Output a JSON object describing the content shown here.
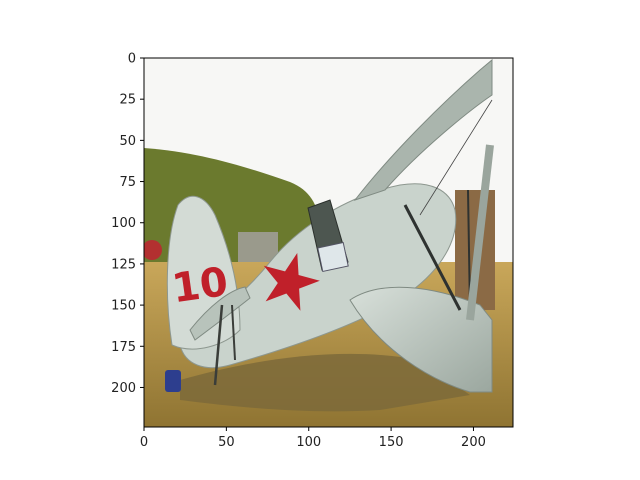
{
  "figure": {
    "image_description_name": "biplane-photo",
    "image_extent": {
      "x": [
        0,
        224
      ],
      "y": [
        224,
        0
      ]
    },
    "image_content": {
      "aircraft_number": "10",
      "colors": {
        "sky": "#f7f7f5",
        "grass": "#a8883c",
        "hill": "#6b7a2e",
        "fuselage": "#c9d3cc",
        "wing": "#b7c2ba",
        "marking_red": "#c0202a",
        "shadow": "#7d6a3a",
        "blue_object": "#2d3e8e"
      }
    },
    "x_axis": {
      "ticks": [
        0,
        50,
        100,
        150,
        200
      ],
      "range": [
        0,
        224
      ]
    },
    "y_axis": {
      "ticks": [
        0,
        25,
        50,
        75,
        100,
        125,
        150,
        175,
        200
      ],
      "range": [
        224,
        0
      ]
    }
  }
}
